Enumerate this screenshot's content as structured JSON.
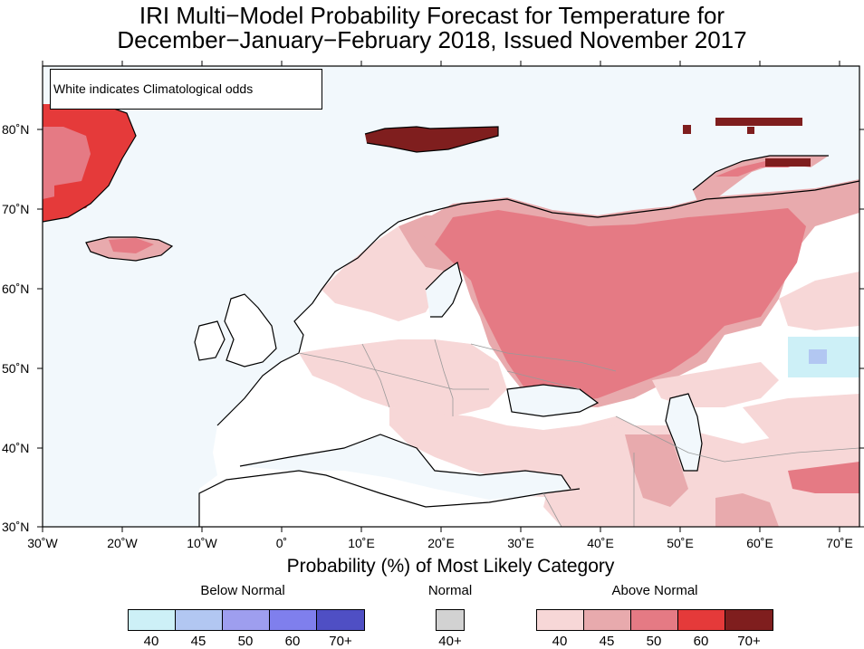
{
  "title": {
    "line1": "IRI Multi−Model Probability Forecast for Temperature for",
    "line2": "December−January−February 2018, Issued November 2017"
  },
  "note": "White indicates Climatological odds",
  "map": {
    "lat_labels": [
      "80˚N",
      "70˚N",
      "60˚N",
      "50˚N",
      "40˚N",
      "30˚N"
    ],
    "lon_labels": [
      "30˚W",
      "20˚W",
      "10˚W",
      "0˚",
      "10˚E",
      "20˚E",
      "30˚E",
      "40˚E",
      "50˚E",
      "60˚E",
      "70˚E"
    ],
    "ocean_color": "#f2f8fc"
  },
  "colorbar": {
    "title": "Probability (%) of Most Likely Category",
    "categories": [
      {
        "name": "Below Normal",
        "colors": [
          "#cdf0f7",
          "#b2c7f2",
          "#9e9eef",
          "#7f7fed",
          "#4f4fc4"
        ],
        "ticks": [
          "40",
          "45",
          "50",
          "60",
          "70+"
        ]
      },
      {
        "name": "Normal",
        "colors": [
          "#d2d2d2"
        ],
        "ticks": [
          "40+"
        ]
      },
      {
        "name": "Above Normal",
        "colors": [
          "#f7d7d7",
          "#e8aaad",
          "#e57a84",
          "#e53a3a",
          "#7f1e1e"
        ],
        "ticks": [
          "40",
          "45",
          "50",
          "60",
          "70+"
        ]
      }
    ]
  }
}
